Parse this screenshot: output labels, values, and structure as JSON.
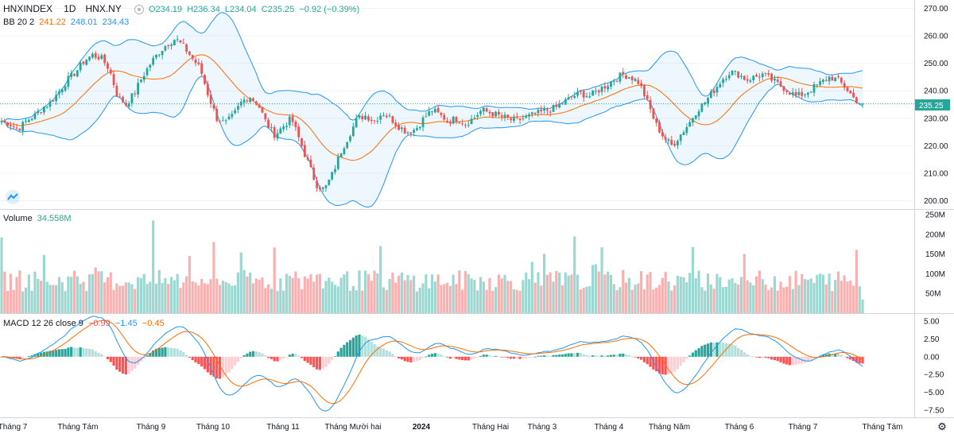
{
  "header": {
    "symbol": "HNXINDEX",
    "interval": "1D",
    "exchange": "HNX.NY",
    "open": "O234.19",
    "high": "H236.34",
    "low": "L234.04",
    "close": "C235.25",
    "change": "−0.92 (−0.39%)"
  },
  "bb_legend": {
    "label": "BB 20 2",
    "basis": "241.22",
    "upper": "248.01",
    "lower": "234.43"
  },
  "volume_legend": {
    "label": "Volume",
    "value": "34.558M"
  },
  "macd_legend": {
    "label": "MACD 12 26 close 9",
    "hist": "−0.99",
    "macd": "−1.45",
    "signal": "−0.45"
  },
  "last_price_tag": "235.25",
  "colors": {
    "up": "#26a69a",
    "down": "#ef5350",
    "bb_band": "#2196f3",
    "bb_basis": "#ff6d00",
    "macd": "#2196f3",
    "signal": "#ff6d00"
  },
  "chart_data": [
    {
      "type": "candlestick",
      "title": "HNXINDEX 1D HNX.NY",
      "y_ticks": [
        "270.00",
        "260.00",
        "250.00",
        "240.00",
        "230.00",
        "220.00",
        "210.00",
        "200.00"
      ],
      "ylim": [
        197,
        273
      ],
      "x_ticks": [
        "Tháng 7",
        "Tháng Tám",
        "Tháng 9",
        "Tháng 10",
        "Tháng 11",
        "Tháng Mười hai",
        "2024",
        "Tháng Hai",
        "Tháng 3",
        "Tháng 4",
        "Tháng Năm",
        "Tháng 6",
        "Tháng 7",
        "Tháng Tám"
      ],
      "close_path": [
        229,
        228,
        226,
        229,
        231,
        234,
        236,
        240,
        244,
        247,
        251,
        253,
        252,
        248,
        238,
        235,
        239,
        245,
        250,
        254,
        257,
        259,
        256,
        252,
        248,
        238,
        230,
        228,
        231,
        236,
        238,
        235,
        228,
        224,
        227,
        230,
        222,
        214,
        206,
        204,
        210,
        218,
        224,
        230,
        231,
        229,
        232,
        230,
        227,
        225,
        226,
        230,
        233,
        231,
        229,
        230,
        228,
        230,
        233,
        232,
        231,
        230,
        229,
        230,
        231,
        232,
        233,
        234,
        236,
        238,
        239,
        238,
        240,
        242,
        244,
        246,
        245,
        243,
        236,
        228,
        223,
        220,
        224,
        228,
        233,
        236,
        240,
        244,
        247,
        246,
        244,
        245,
        246,
        244,
        242,
        240,
        238,
        239,
        241,
        243,
        245,
        244,
        241,
        237,
        235
      ],
      "last": 235.25
    },
    {
      "type": "bar",
      "title": "Volume",
      "y_ticks": [
        "250M",
        "200M",
        "150M",
        "100M",
        "50M"
      ],
      "last": "34.558M"
    },
    {
      "type": "line",
      "title": "MACD 12 26 close 9",
      "y_ticks": [
        "5.00",
        "2.50",
        "0.00",
        "−2.50",
        "−5.00",
        "−7.50"
      ],
      "ylim": [
        -8.5,
        6
      ],
      "series": [
        {
          "name": "MACD",
          "last": -1.45
        },
        {
          "name": "Signal",
          "last": -0.45
        },
        {
          "name": "Histogram",
          "last": -0.99
        }
      ]
    }
  ]
}
